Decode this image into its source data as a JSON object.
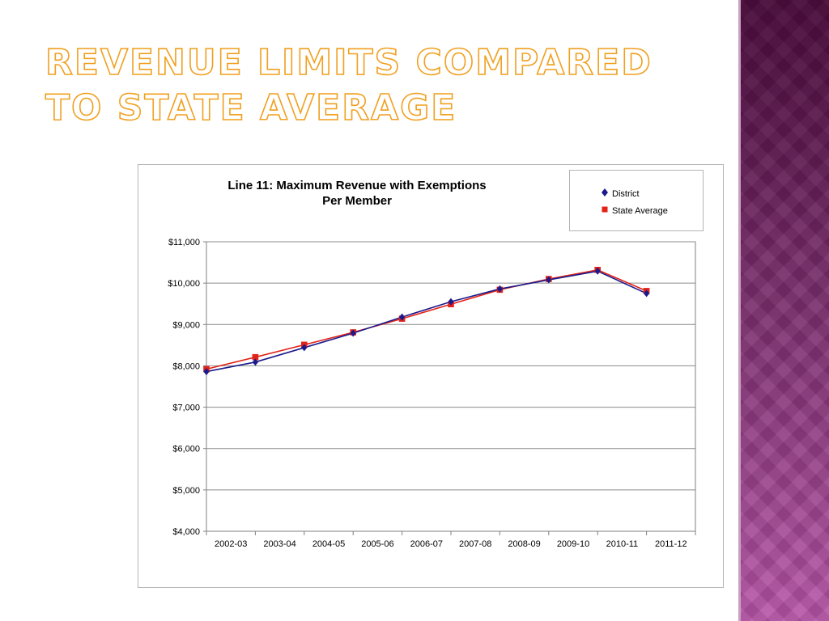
{
  "slide": {
    "title": "Revenue Limits Compared to State Average"
  },
  "colors": {
    "district": "#1a1a8c",
    "state_average": "#e2231a",
    "title_outline": "#f0a020",
    "side_panel": "#6a2160"
  },
  "chart_data": {
    "type": "line",
    "title_line1": "Line 11: Maximum Revenue with Exemptions",
    "title_line2": "Per Member",
    "xlabel": "",
    "ylabel": "",
    "categories": [
      "2002-03",
      "2003-04",
      "2004-05",
      "2005-06",
      "2006-07",
      "2007-08",
      "2008-09",
      "2009-10",
      "2010-11",
      "2011-12"
    ],
    "series": [
      {
        "name": "District",
        "marker": "diamond",
        "values": [
          7860,
          8090,
          8440,
          8790,
          9180,
          9550,
          9860,
          10080,
          10290,
          9750
        ]
      },
      {
        "name": "State Average",
        "marker": "square",
        "values": [
          7920,
          8210,
          8510,
          8810,
          9140,
          9490,
          9840,
          10100,
          10320,
          9810
        ]
      }
    ],
    "ylim": [
      4000,
      11000
    ],
    "yticks": [
      4000,
      5000,
      6000,
      7000,
      8000,
      9000,
      10000,
      11000
    ],
    "ytick_labels": [
      "$4,000",
      "$5,000",
      "$6,000",
      "$7,000",
      "$8,000",
      "$9,000",
      "$10,000",
      "$11,000"
    ],
    "grid": true,
    "legend_position": "top-right"
  }
}
